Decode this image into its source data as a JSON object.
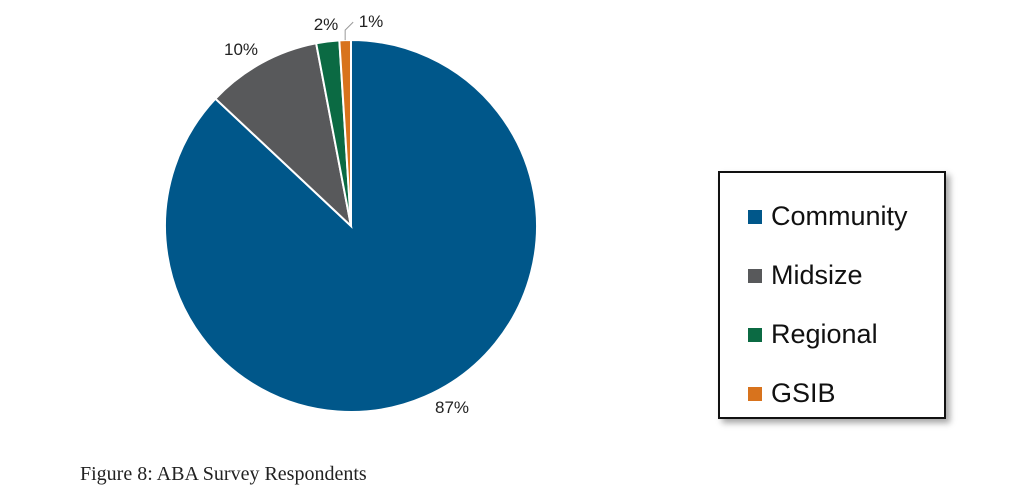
{
  "chart_data": {
    "type": "pie",
    "categories": [
      "Community",
      "Midsize",
      "Regional",
      "GSIB"
    ],
    "values": [
      87,
      10,
      2,
      1
    ],
    "data_labels": [
      "87%",
      "10%",
      "2%",
      "1%"
    ],
    "colors": [
      "#00578a",
      "#58595b",
      "#0b6a43",
      "#d8731d"
    ],
    "legend_position": "right",
    "start_angle": "top, clockwise"
  },
  "caption": "Figure 8: ABA Survey Respondents"
}
